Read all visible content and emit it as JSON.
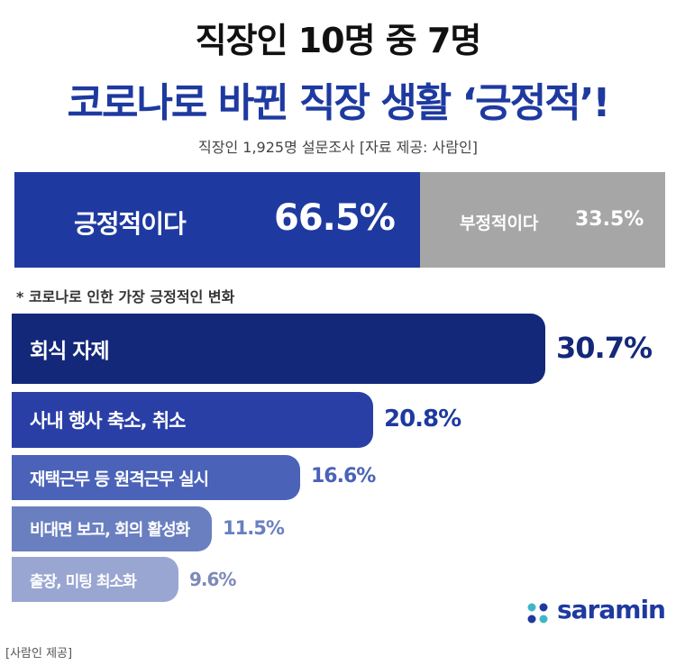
{
  "title_line1": "직장인 10명 중 7명",
  "title_line2": "코로나로 바뀐 직장 생활 ‘긍정적’!",
  "subtitle": "직장인 1,925명 설문조사 [자료 제공: 사람인]",
  "split": {
    "positive_label": "긍정적이다",
    "positive_value": "66.5%",
    "negative_label": "부정적이다",
    "negative_value": "33.5%"
  },
  "note": "* 코로나로 인한 가장 긍정적인 변화",
  "logo_text": "saramin",
  "credit": "[사람인 제공]",
  "colors": {
    "brand": "#1e3aa0",
    "negative": "#a6a6a6",
    "bar_shades": [
      "#14287a",
      "#2a3fa6",
      "#4a62b8",
      "#6a7fc0",
      "#9aa6d2"
    ]
  },
  "chart_data": [
    {
      "type": "bar",
      "orientation": "horizontal-stacked",
      "categories": [
        "긍정적이다",
        "부정적이다"
      ],
      "values": [
        66.5,
        33.5
      ],
      "value_labels": [
        "66.5%",
        "33.5%"
      ],
      "unit": "%"
    },
    {
      "type": "bar",
      "orientation": "horizontal",
      "title": "* 코로나로 인한 가장 긍정적인 변화",
      "categories": [
        "회식 자제",
        "사내 행사 축소, 취소",
        "재택근무 등 원격근무 실시",
        "비대면 보고, 회의 활성화",
        "출장, 미팅 최소화"
      ],
      "values": [
        30.7,
        20.8,
        16.6,
        11.5,
        9.6
      ],
      "value_labels": [
        "30.7%",
        "20.8%",
        "16.6%",
        "11.5%",
        "9.6%"
      ],
      "unit": "%"
    }
  ]
}
